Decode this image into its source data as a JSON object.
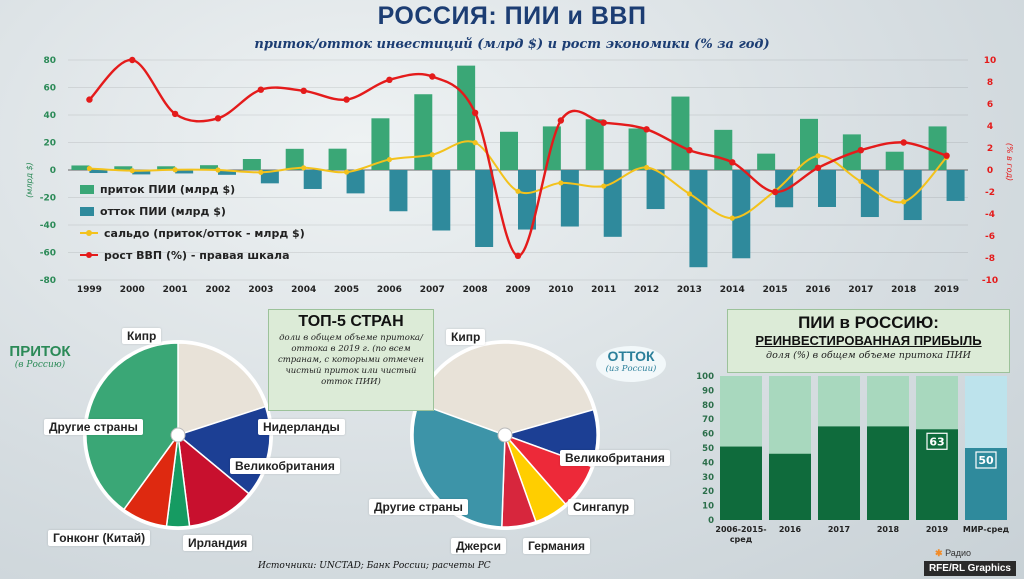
{
  "header": {
    "title": "РОССИЯ: ПИИ и ВВП",
    "subtitle": "приток/отток инвестиций (млрд $) и рост экономики (% за год)"
  },
  "chart_data": [
    {
      "type": "bar",
      "name": "main",
      "categories": [
        "1999",
        "2000",
        "2001",
        "2002",
        "2003",
        "2004",
        "2005",
        "2006",
        "2007",
        "2008",
        "2009",
        "2010",
        "2011",
        "2012",
        "2013",
        "2014",
        "2015",
        "2016",
        "2017",
        "2018",
        "2019"
      ],
      "ylabel": "(млрд $)",
      "y2label": "(% в год)",
      "ylim": [
        -80,
        80
      ],
      "y2lim": [
        -10,
        10
      ],
      "yticks": [
        "80",
        "60",
        "40",
        "20",
        "0",
        "-20",
        "-40",
        "-60",
        "-80"
      ],
      "y2ticks": [
        "10",
        "8",
        "6",
        "4",
        "2",
        "0",
        "-2",
        "-4",
        "-6",
        "-8",
        "-10"
      ],
      "series": [
        {
          "name": "приток ПИИ (млрд $)",
          "kind": "bar",
          "color": "#3aa776",
          "values": [
            3.3,
            2.7,
            2.7,
            3.5,
            8.0,
            15.4,
            15.5,
            37.6,
            55.1,
            75.9,
            27.8,
            31.7,
            36.9,
            30.2,
            53.4,
            29.2,
            11.9,
            37.2,
            25.9,
            13.3,
            31.7
          ]
        },
        {
          "name": "отток ПИИ (млрд $)",
          "kind": "bar",
          "color": "#2f8a9c",
          "values": [
            -2.2,
            -3.2,
            -2.5,
            -3.5,
            -9.7,
            -13.8,
            -17.0,
            -30.0,
            -44.0,
            -56.0,
            -43.3,
            -41.1,
            -48.6,
            -28.4,
            -70.7,
            -64.2,
            -27.1,
            -26.9,
            -34.2,
            -36.4,
            -22.5
          ]
        },
        {
          "name": "сальдо (приток/отток - млрд $)",
          "kind": "line",
          "color": "#f3c21c",
          "values": [
            1.1,
            -0.5,
            0.2,
            0.0,
            -1.7,
            1.6,
            -1.5,
            7.6,
            11.1,
            19.9,
            -15.5,
            -9.4,
            -11.7,
            1.8,
            -17.3,
            -35.0,
            -15.2,
            10.3,
            -8.3,
            -23.1,
            9.2
          ]
        },
        {
          "name": "рост ВВП (%) - правая шкала",
          "kind": "line",
          "axis": "right",
          "color": "#e41b1b",
          "values": [
            6.4,
            10.0,
            5.1,
            4.7,
            7.3,
            7.2,
            6.4,
            8.2,
            8.5,
            5.2,
            -7.8,
            4.5,
            4.3,
            3.7,
            1.8,
            0.7,
            -2.0,
            0.2,
            1.8,
            2.5,
            1.3
          ]
        }
      ]
    },
    {
      "type": "pie",
      "name": "inflow",
      "title": "ПРИТОК",
      "note": "(в Россию)",
      "slices": [
        {
          "label": "Кипр",
          "value": 20,
          "color": "#e8e2d8"
        },
        {
          "label": "Нидерланды",
          "value": 16,
          "color": "#1c3f94"
        },
        {
          "label": "Великобритания",
          "value": 12,
          "color": "#c8102e"
        },
        {
          "label": "Ирландия",
          "value": 4,
          "color": "#169b62"
        },
        {
          "label": "Гонконг (Китай)",
          "value": 8,
          "color": "#de2910"
        },
        {
          "label": "Другие страны",
          "value": 40,
          "color": "#3aa776"
        }
      ]
    },
    {
      "type": "pie",
      "name": "outflow",
      "title": "ОТТОК",
      "note": "(из России)",
      "slices": [
        {
          "label": "Кипр",
          "value": 40,
          "color": "#e8e2d8"
        },
        {
          "label": "Великобритания",
          "value": 10,
          "color": "#1c3f94"
        },
        {
          "label": "Сингапур",
          "value": 8,
          "color": "#ed2939"
        },
        {
          "label": "Германия",
          "value": 6,
          "color": "#ffce00"
        },
        {
          "label": "Джерси",
          "value": 6,
          "color": "#d7263d"
        },
        {
          "label": "Другие страны",
          "value": 30,
          "color": "#3d94a8"
        }
      ]
    },
    {
      "type": "bar",
      "name": "reinvest",
      "title": "ПИИ в РОССИЮ:",
      "title2": "РЕИНВЕСТИРОВАННАЯ ПРИБЫЛЬ",
      "subtitle": "доля (%) в общем объеме притока ПИИ",
      "categories": [
        "2006-2015-сред",
        "2016",
        "2017",
        "2018",
        "2019",
        "МИР-сред"
      ],
      "values": [
        51,
        46,
        65,
        65,
        63,
        50
      ],
      "ylim": [
        0,
        100
      ],
      "yticks": [
        "0",
        "10",
        "20",
        "30",
        "40",
        "50",
        "60",
        "70",
        "80",
        "90",
        "100"
      ],
      "data_labels": {
        "2019": "63",
        "МИР-сред": "50"
      }
    }
  ],
  "top5": {
    "title": "ТОП-5 СТРАН",
    "text": "доли в общем объеме притока/оттока в 2019 г. (по всем странам, с которыми отмечен чистый приток или чистый отток ПИИ)"
  },
  "footer": {
    "sources": "Источники: UNCTAD; Банк России; расчеты РС",
    "credit": "RFE/RL Graphics",
    "radio": "Радио"
  },
  "colors": {
    "title": "#1c3d73",
    "inflow": "#3aa776",
    "outflow": "#2f8a9c",
    "saldo": "#f3c21c",
    "gdp": "#e41b1b",
    "panel_bg": "#dcebd7"
  }
}
